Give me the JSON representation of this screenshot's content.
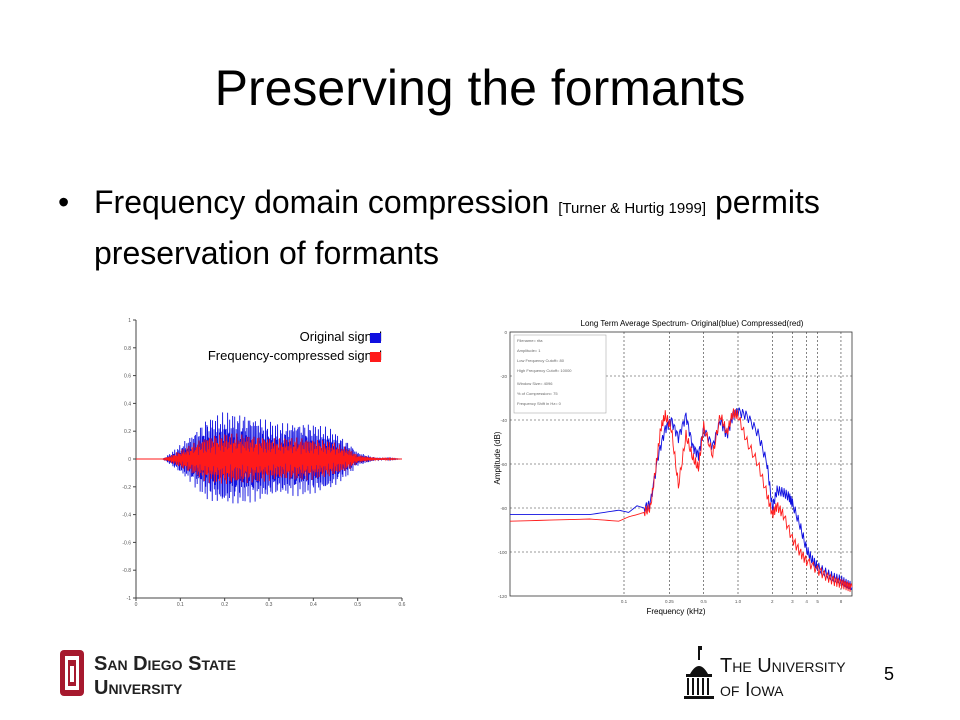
{
  "slide": {
    "title": "Preserving the formants",
    "bullet_main": "Frequency domain compression",
    "bullet_citation": "[Turner & Hurtig 1999]",
    "bullet_rest": "permits preservation of formants",
    "page_number": "5"
  },
  "logos": {
    "sdsu": {
      "line1": "San Diego State",
      "line2": "University",
      "color": "#a6192e"
    },
    "uiowa": {
      "line1": "The University",
      "line2": "of Iowa"
    }
  },
  "chart_data": [
    {
      "type": "line",
      "title": "",
      "xlabel": "",
      "ylabel": "",
      "xlim": [
        0,
        0.6
      ],
      "ylim": [
        -1,
        1
      ],
      "x_tick_labels": [
        "0",
        "0.1",
        "0.2",
        "0.3",
        "0.4",
        "0.5",
        "0.6"
      ],
      "y_tick_labels": [
        "1",
        "0.8",
        "0.6",
        "0.4",
        "0.2",
        "0",
        "-0.2",
        "-0.4",
        "-0.6",
        "-0.8",
        "-1"
      ],
      "legend_position": "top-right",
      "series": [
        {
          "name": "Original signal",
          "color": "#1010e0",
          "envelope_t": [
            0.0,
            0.06,
            0.08,
            0.12,
            0.16,
            0.2,
            0.24,
            0.28,
            0.32,
            0.36,
            0.4,
            0.44,
            0.48,
            0.5,
            0.54,
            0.6
          ],
          "envelope_amp": [
            0.0,
            0.0,
            0.05,
            0.16,
            0.3,
            0.34,
            0.33,
            0.3,
            0.26,
            0.27,
            0.26,
            0.22,
            0.12,
            0.05,
            0.01,
            0.0
          ]
        },
        {
          "name": "Frequency-compressed signal",
          "color": "#ff1a1a",
          "envelope_t": [
            0.0,
            0.06,
            0.08,
            0.12,
            0.16,
            0.2,
            0.24,
            0.28,
            0.32,
            0.36,
            0.4,
            0.44,
            0.48,
            0.5,
            0.54,
            0.6
          ],
          "envelope_amp": [
            0.0,
            0.0,
            0.03,
            0.1,
            0.17,
            0.19,
            0.18,
            0.17,
            0.15,
            0.16,
            0.15,
            0.13,
            0.08,
            0.03,
            0.01,
            0.0
          ]
        }
      ]
    },
    {
      "type": "line",
      "title": "Long Term Average Spectrum- Original(blue) Compressed(red)",
      "xlabel": "Frequency (kHz)",
      "ylabel": "Amplitude (dB)",
      "x_scale": "log",
      "xlim": [
        0.01,
        10
      ],
      "ylim": [
        -120,
        0
      ],
      "x_tick_labels": [
        "0.1",
        "0.25",
        "0.5",
        "1.0",
        "2",
        "3",
        "4",
        "5",
        "8"
      ],
      "x_tick_values": [
        0.1,
        0.25,
        0.5,
        1.0,
        2,
        3,
        4,
        5,
        8
      ],
      "y_tick_labels": [
        "0",
        "-20",
        "-40",
        "-60",
        "-80",
        "-100",
        "-120"
      ],
      "y_tick_values": [
        0,
        -20,
        -40,
        -60,
        -80,
        -100,
        -120
      ],
      "grid": true,
      "info_box_lines": [
        "Filename= rita",
        "Amplitude= 1",
        "Low Frequency Cutoff= 80",
        "High Frequency Cutoff= 10000",
        "Window Size= 4096",
        "% of Compression= 75",
        "Frequency Shift in Hz= 0"
      ],
      "series": [
        {
          "name": "Original",
          "color": "#1010e0",
          "x": [
            0.01,
            0.05,
            0.09,
            0.11,
            0.13,
            0.15,
            0.17,
            0.2,
            0.23,
            0.26,
            0.3,
            0.35,
            0.4,
            0.45,
            0.5,
            0.6,
            0.7,
            0.8,
            0.9,
            1.0,
            1.2,
            1.5,
            1.8,
            2.0,
            2.2,
            2.5,
            2.8,
            3.0,
            3.5,
            4.0,
            4.5,
            5,
            6,
            7,
            8,
            9,
            10
          ],
          "y": [
            -83,
            -83,
            -81,
            -82,
            -79,
            -80,
            -78,
            -56,
            -44,
            -40,
            -48,
            -38,
            -52,
            -56,
            -44,
            -52,
            -40,
            -47,
            -38,
            -36,
            -38,
            -46,
            -60,
            -80,
            -72,
            -73,
            -75,
            -78,
            -88,
            -99,
            -104,
            -107,
            -110,
            -112,
            -113,
            -115,
            -116
          ]
        },
        {
          "name": "Compressed",
          "color": "#ff1a1a",
          "x": [
            0.01,
            0.05,
            0.09,
            0.11,
            0.13,
            0.15,
            0.17,
            0.19,
            0.21,
            0.23,
            0.26,
            0.3,
            0.35,
            0.4,
            0.45,
            0.5,
            0.6,
            0.7,
            0.8,
            0.9,
            1.0,
            1.2,
            1.5,
            1.8,
            2.0,
            2.2,
            2.5,
            3.0,
            3.5,
            4.0,
            5,
            6,
            7,
            8,
            9,
            10
          ],
          "y": [
            -86,
            -85,
            -86,
            -84,
            -83,
            -82,
            -80,
            -62,
            -44,
            -38,
            -44,
            -70,
            -47,
            -57,
            -62,
            -43,
            -56,
            -38,
            -46,
            -37,
            -38,
            -50,
            -60,
            -74,
            -83,
            -79,
            -83,
            -94,
            -100,
            -104,
            -108,
            -111,
            -113,
            -114,
            -115,
            -116
          ]
        }
      ]
    }
  ]
}
